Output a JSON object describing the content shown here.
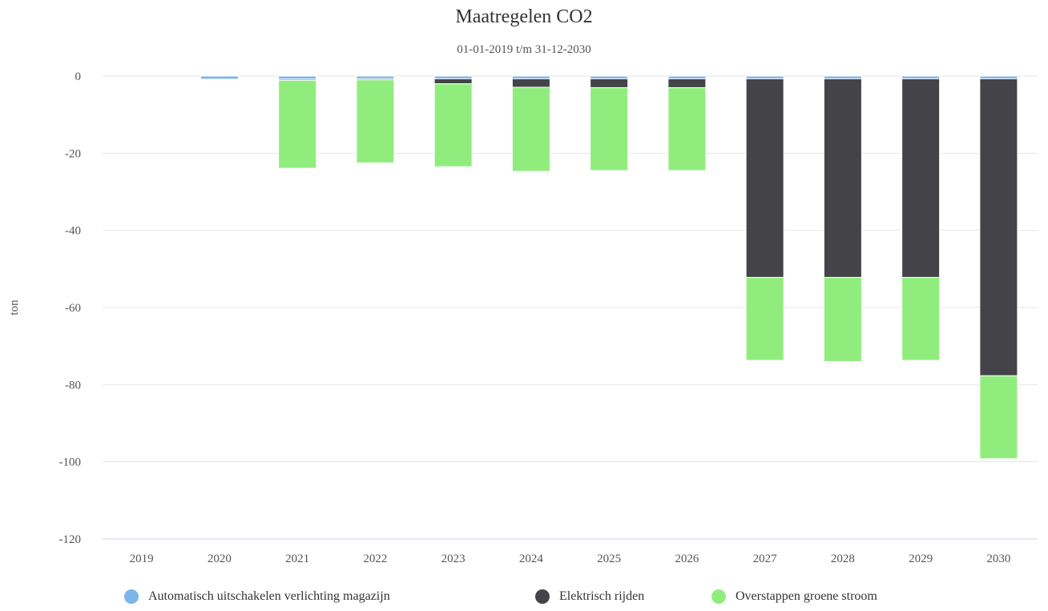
{
  "chart_data": {
    "type": "bar",
    "stacked": true,
    "title": "Maatregelen CO2",
    "subtitle": "01-01-2019 t/m 31-12-2030",
    "ylabel": "ton",
    "xlabel": "",
    "ylim": [
      -120,
      0
    ],
    "yticks": [
      0,
      -20,
      -40,
      -60,
      -80,
      -100,
      -120
    ],
    "grid": true,
    "legend_position": "bottom",
    "categories": [
      "2019",
      "2020",
      "2021",
      "2022",
      "2023",
      "2024",
      "2025",
      "2026",
      "2027",
      "2028",
      "2029",
      "2030"
    ],
    "series": [
      {
        "name": "Automatisch uitschakelen verlichting magazijn",
        "color": "#7cb5ec",
        "values": [
          0,
          -0.8,
          -0.8,
          -0.7,
          -0.7,
          -0.7,
          -0.7,
          -0.7,
          -0.7,
          -0.7,
          -0.7,
          -0.7
        ]
      },
      {
        "name": "Elektrisch rijden",
        "color": "#434348",
        "values": [
          0,
          0,
          -0.3,
          -0.3,
          -1.3,
          -2.2,
          -2.3,
          -2.3,
          -51.5,
          -51.5,
          -51.5,
          -77.0
        ]
      },
      {
        "name": "Overstappen groene stroom",
        "color": "#90ed7d",
        "values": [
          0,
          0,
          -22.8,
          -21.5,
          -21.5,
          -21.8,
          -21.5,
          -21.5,
          -21.5,
          -21.8,
          -21.5,
          -21.5
        ]
      }
    ]
  }
}
